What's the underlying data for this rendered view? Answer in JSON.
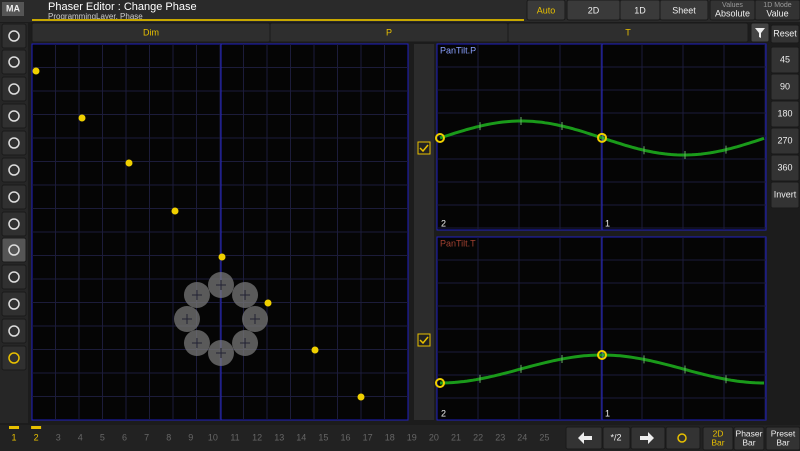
{
  "header": {
    "logo": "MA",
    "title": "Phaser Editor : Change Phase",
    "subtitle": "ProgrammingLayer, Phase"
  },
  "view_buttons": [
    "Auto",
    "2D",
    "1D",
    "Sheet"
  ],
  "settings": [
    {
      "label": "Values",
      "value": "Absolute"
    },
    {
      "label": "1D Mode",
      "value": "Value"
    }
  ],
  "tabs": [
    "Dim",
    "P",
    "T"
  ],
  "phase_buttons": [
    "Reset",
    "45",
    "90",
    "180",
    "270",
    "360",
    "Invert"
  ],
  "graphs": [
    {
      "title": "PanTilt.P",
      "left": "2",
      "right": "1"
    },
    {
      "title": "PanTilt.T",
      "left": "2",
      "right": "1"
    }
  ],
  "steps": [
    "1",
    "2",
    "3",
    "4",
    "5",
    "6",
    "7",
    "8",
    "9",
    "10",
    "11",
    "12",
    "13",
    "14",
    "15",
    "16",
    "17",
    "18",
    "19",
    "20",
    "21",
    "22",
    "23",
    "24",
    "25"
  ],
  "speed_button": "*/2",
  "bar_buttons": [
    [
      "2D",
      "Bar"
    ],
    [
      "Phaser",
      "Bar"
    ],
    [
      "Preset",
      "Bar"
    ]
  ]
}
